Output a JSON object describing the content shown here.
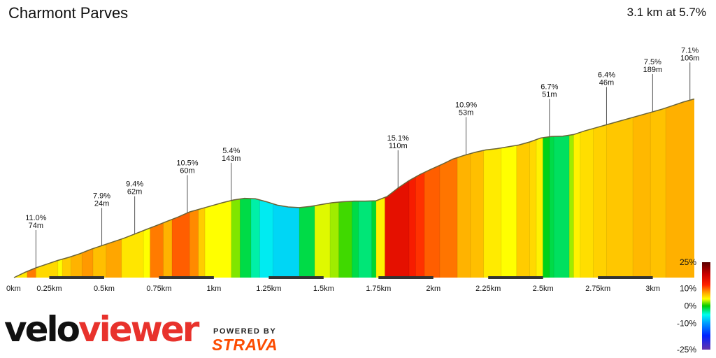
{
  "header": {
    "title": "Charmont Parves",
    "summary": "3.1 km at 5.7%"
  },
  "branding": {
    "logo_part1": "velo",
    "logo_part2": "viewer",
    "powered_by": "POWERED BY",
    "strava": "STRAVA"
  },
  "colors": {
    "fill_green": "#11dd11",
    "fill_yellow": "#f2f21a",
    "fill_red": "#ee1111",
    "fill_cyan": "#44eeee",
    "outline": "#6b6436"
  },
  "chart_data": {
    "type": "area",
    "title": "Charmont Parves",
    "distance_unit": "km",
    "xlim": [
      0,
      3.1
    ],
    "x_ticks": [
      {
        "v": 0,
        "label": "0km"
      },
      {
        "v": 0.25,
        "label": "0.25km"
      },
      {
        "v": 0.5,
        "label": "0.5km"
      },
      {
        "v": 0.75,
        "label": "0.75km"
      },
      {
        "v": 1,
        "label": "1km"
      },
      {
        "v": 1.25,
        "label": "1.25km"
      },
      {
        "v": 1.5,
        "label": "1.5km"
      },
      {
        "v": 1.75,
        "label": "1.75km"
      },
      {
        "v": 2,
        "label": "2km"
      },
      {
        "v": 2.25,
        "label": "2.25km"
      },
      {
        "v": 2.5,
        "label": "2.5km"
      },
      {
        "v": 2.75,
        "label": "2.75km"
      },
      {
        "v": 3,
        "label": "3km"
      }
    ],
    "profile": {
      "x": [
        0,
        0.05,
        0.1,
        0.15,
        0.2,
        0.25,
        0.3,
        0.35,
        0.4,
        0.45,
        0.5,
        0.55,
        0.6,
        0.65,
        0.7,
        0.75,
        0.8,
        0.85,
        0.9,
        0.95,
        1,
        1.05,
        1.1,
        1.15,
        1.2,
        1.25,
        1.3,
        1.35,
        1.4,
        1.45,
        1.5,
        1.55,
        1.6,
        1.65,
        1.7,
        1.75,
        1.8,
        1.85,
        1.9,
        1.95,
        2,
        2.05,
        2.1,
        2.15,
        2.2,
        2.25,
        2.3,
        2.35,
        2.4,
        2.45,
        2.5,
        2.55,
        2.6,
        2.65,
        2.7,
        2.75,
        2.8,
        2.85,
        2.9,
        2.95,
        3,
        3.05,
        3.1
      ],
      "rel_elev": [
        0,
        4.3,
        8,
        11,
        14,
        16.5,
        19.5,
        23,
        26,
        29,
        32,
        35.5,
        39,
        42.5,
        46,
        49.5,
        53.5,
        56,
        58.5,
        61,
        63.2,
        64.6,
        64.2,
        61.8,
        59,
        57.5,
        57,
        58,
        59.5,
        61,
        61.8,
        62.3,
        62.3,
        62.6,
        66,
        73,
        79,
        84,
        88.2,
        92.2,
        96.5,
        99.5,
        102,
        104,
        105,
        106.5,
        108,
        110.5,
        113.7,
        115,
        115.2,
        116.5,
        119.5,
        122,
        124.5,
        127,
        129.5,
        132,
        134.5,
        137,
        140,
        143,
        145.5
      ]
    },
    "gradient_bands": [
      [
        0.0,
        0.06,
        5
      ],
      [
        0.06,
        0.1,
        9
      ],
      [
        0.1,
        0.2,
        5.5
      ],
      [
        0.2,
        0.22,
        4
      ],
      [
        0.22,
        0.26,
        6
      ],
      [
        0.26,
        0.31,
        7
      ],
      [
        0.31,
        0.36,
        8
      ],
      [
        0.36,
        0.42,
        6.5
      ],
      [
        0.42,
        0.49,
        7.5
      ],
      [
        0.49,
        0.59,
        5
      ],
      [
        0.59,
        0.62,
        4
      ],
      [
        0.62,
        0.68,
        9
      ],
      [
        0.68,
        0.72,
        7
      ],
      [
        0.72,
        0.8,
        10
      ],
      [
        0.8,
        0.84,
        8.5
      ],
      [
        0.84,
        0.87,
        6
      ],
      [
        0.87,
        0.99,
        4
      ],
      [
        0.99,
        1.03,
        2
      ],
      [
        1.03,
        1.08,
        -1.5
      ],
      [
        1.08,
        1.12,
        -3.5
      ],
      [
        1.12,
        1.18,
        -6
      ],
      [
        1.18,
        1.3,
        -7
      ],
      [
        1.3,
        1.37,
        -1.5
      ],
      [
        1.37,
        1.44,
        3.5
      ],
      [
        1.44,
        1.48,
        2.5
      ],
      [
        1.48,
        1.54,
        1
      ],
      [
        1.54,
        1.57,
        -1.5
      ],
      [
        1.57,
        1.63,
        -2.5
      ],
      [
        1.63,
        1.65,
        -1
      ],
      [
        1.65,
        1.69,
        4.5
      ],
      [
        1.69,
        1.8,
        15.1
      ],
      [
        1.8,
        1.83,
        13
      ],
      [
        1.83,
        1.87,
        11.5
      ],
      [
        1.87,
        1.94,
        10
      ],
      [
        1.94,
        2.02,
        9.2
      ],
      [
        2.02,
        2.08,
        7
      ],
      [
        2.08,
        2.14,
        6.5
      ],
      [
        2.14,
        2.22,
        4.8
      ],
      [
        2.22,
        2.29,
        4
      ],
      [
        2.29,
        2.35,
        6
      ],
      [
        2.35,
        2.38,
        5.5
      ],
      [
        2.38,
        2.41,
        4.5
      ],
      [
        2.41,
        2.44,
        -0.5
      ],
      [
        2.44,
        2.46,
        -1.5
      ],
      [
        2.46,
        2.53,
        -2
      ],
      [
        2.53,
        2.55,
        2.5
      ],
      [
        2.55,
        2.58,
        4.5
      ],
      [
        2.58,
        2.64,
        5.3
      ],
      [
        2.64,
        2.7,
        5.8
      ],
      [
        2.7,
        2.82,
        6.2
      ],
      [
        2.82,
        2.9,
        6.8
      ],
      [
        2.9,
        2.97,
        6.4
      ],
      [
        2.97,
        3.1,
        7.1
      ]
    ],
    "annotations": [
      {
        "x": 0.1,
        "grade": "11.0%",
        "length": "74m"
      },
      {
        "x": 0.4,
        "grade": "7.9%",
        "length": "24m"
      },
      {
        "x": 0.55,
        "grade": "9.4%",
        "length": "62m"
      },
      {
        "x": 0.79,
        "grade": "10.5%",
        "length": "60m"
      },
      {
        "x": 0.99,
        "grade": "5.4%",
        "length": "143m"
      },
      {
        "x": 1.75,
        "grade": "15.1%",
        "length": "110m"
      },
      {
        "x": 2.06,
        "grade": "10.9%",
        "length": "53m"
      },
      {
        "x": 2.44,
        "grade": "6.7%",
        "length": "51m"
      },
      {
        "x": 2.7,
        "grade": "6.4%",
        "length": "46m"
      },
      {
        "x": 2.91,
        "grade": "7.5%",
        "length": "189m"
      },
      {
        "x": 3.08,
        "grade": "7.1%",
        "length": "106m"
      }
    ],
    "legend": {
      "labels": [
        {
          "v": 25,
          "label": "25%"
        },
        {
          "v": 10,
          "label": "10%"
        },
        {
          "v": 0,
          "label": "0%"
        },
        {
          "v": -10,
          "label": "-10%"
        },
        {
          "v": -25,
          "label": "-25%"
        }
      ],
      "stops": [
        {
          "v": 25,
          "color": "#5a0000"
        },
        {
          "v": 18,
          "color": "#cc0000"
        },
        {
          "v": 12,
          "color": "#ff2200"
        },
        {
          "v": 8,
          "color": "#ff9900"
        },
        {
          "v": 4,
          "color": "#ffff00"
        },
        {
          "v": 0,
          "color": "#00cc00"
        },
        {
          "v": -5,
          "color": "#00ffee"
        },
        {
          "v": -10,
          "color": "#0099ff"
        },
        {
          "v": -17,
          "color": "#0022ff"
        },
        {
          "v": -25,
          "color": "#6633aa"
        }
      ]
    }
  }
}
